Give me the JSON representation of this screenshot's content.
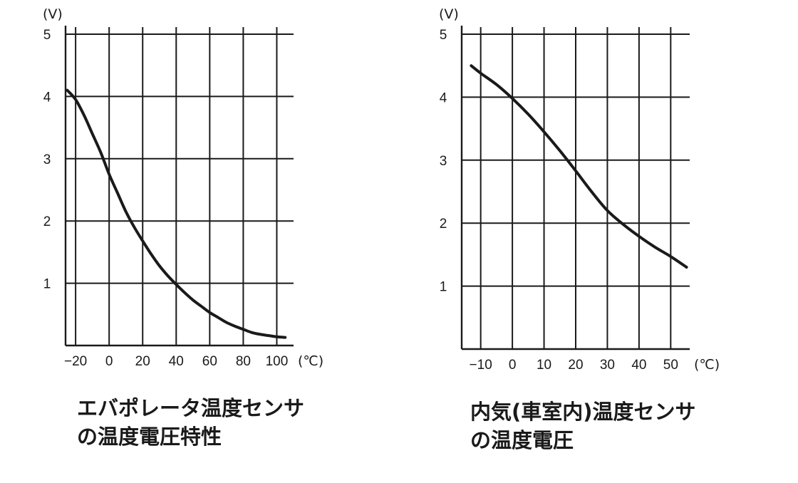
{
  "chart_data": [
    {
      "type": "line",
      "title_lines": [
        "エバポレータ温度センサ",
        "の温度電圧特性"
      ],
      "y_unit": "(V)",
      "x_unit": "(℃)",
      "xlim": [
        -26,
        110
      ],
      "ylim": [
        0,
        5
      ],
      "x_ticks": [
        -20,
        0,
        20,
        40,
        60,
        80,
        100
      ],
      "x_tick_labels": [
        "−20",
        "0",
        "20",
        "40",
        "60",
        "80",
        "100"
      ],
      "y_ticks": [
        1,
        2,
        3,
        4,
        5
      ],
      "y_tick_labels": [
        "1",
        "2",
        "3",
        "4",
        "5"
      ],
      "grid": true,
      "series": [
        {
          "x": [
            -25,
            -20,
            -15,
            -10,
            -5,
            0,
            5,
            10,
            15,
            20,
            25,
            30,
            35,
            40,
            45,
            50,
            55,
            60,
            65,
            70,
            75,
            80,
            85,
            90,
            95,
            100,
            105
          ],
          "y": [
            4.1,
            3.95,
            3.7,
            3.4,
            3.1,
            2.75,
            2.45,
            2.15,
            1.9,
            1.68,
            1.47,
            1.28,
            1.12,
            0.98,
            0.85,
            0.73,
            0.63,
            0.53,
            0.45,
            0.37,
            0.31,
            0.26,
            0.21,
            0.18,
            0.16,
            0.14,
            0.13
          ]
        }
      ]
    },
    {
      "type": "line",
      "title_lines": [
        "内気(車室内)温度センサ",
        "の温度電圧"
      ],
      "y_unit": "(V)",
      "x_unit": "(℃)",
      "xlim": [
        -16,
        56
      ],
      "ylim": [
        0,
        5
      ],
      "x_ticks": [
        -10,
        0,
        10,
        20,
        30,
        40,
        50
      ],
      "x_tick_labels": [
        "−10",
        "0",
        "10",
        "20",
        "30",
        "40",
        "50"
      ],
      "y_ticks": [
        1,
        2,
        3,
        4,
        5
      ],
      "y_tick_labels": [
        "1",
        "2",
        "3",
        "4",
        "5"
      ],
      "grid": true,
      "series": [
        {
          "x": [
            -13,
            -10,
            -5,
            0,
            5,
            10,
            15,
            20,
            25,
            30,
            35,
            40,
            45,
            50,
            55
          ],
          "y": [
            4.5,
            4.38,
            4.2,
            3.98,
            3.73,
            3.45,
            3.15,
            2.83,
            2.5,
            2.2,
            1.98,
            1.79,
            1.62,
            1.47,
            1.3
          ]
        }
      ]
    }
  ]
}
